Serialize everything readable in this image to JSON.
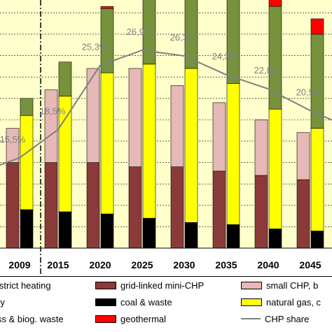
{
  "chart_data": {
    "type": "bar",
    "categories": [
      "2009",
      "2015",
      "2020",
      "2025",
      "2030",
      "2035",
      "2040",
      "2045"
    ],
    "stack_order": [
      "coal & waste",
      "grid-linked mini-CHP",
      "natural gas, c",
      "small CHP, b",
      "geothermal"
    ],
    "series": [
      {
        "name": "coal & waste",
        "color": "#000000",
        "left": [
          0,
          0,
          0,
          0,
          0,
          0,
          0,
          0
        ],
        "right": [
          0.9,
          0.85,
          0.8,
          0.7,
          0.6,
          0.55,
          0.45,
          0.4
        ]
      },
      {
        "name": "grid-linked mini-CHP",
        "color": "#8b3a3a",
        "left": [
          2.0,
          2.0,
          2.0,
          1.9,
          1.9,
          1.8,
          1.7,
          1.6
        ],
        "right": [
          0,
          0,
          0,
          0,
          0,
          0,
          0,
          0
        ]
      },
      {
        "name": "small CHP, b",
        "color": "#e6b8b8",
        "left": [
          0.8,
          1.7,
          2.2,
          2.3,
          1.9,
          1.6,
          1.3,
          1.1
        ],
        "right": [
          0,
          0,
          0,
          0,
          0,
          0,
          0,
          0
        ]
      },
      {
        "name": "natural gas, c",
        "color": "#ffff00",
        "left": [
          0,
          0,
          0,
          0,
          0,
          0,
          0,
          0
        ],
        "right": [
          2.2,
          2.7,
          3.3,
          3.6,
          3.6,
          3.3,
          2.8,
          2.4
        ]
      },
      {
        "name": "geothermal",
        "color": "#ff0000",
        "left": [
          0,
          0,
          0,
          0,
          0,
          0,
          0,
          0
        ],
        "right": [
          0,
          0,
          0.05,
          0.12,
          0.17,
          0.25,
          0.32,
          0.36
        ]
      },
      {
        "name": "biomass & biog. waste",
        "color": "#76923c",
        "left": [
          0,
          0,
          0,
          0,
          0,
          0,
          0,
          0
        ],
        "right": [
          0.4,
          0.8,
          1.5,
          1.9,
          2.1,
          2.3,
          2.4,
          2.2
        ]
      }
    ],
    "chp_share": {
      "name": "CHP share",
      "x": [
        "2009",
        "2015",
        "2020",
        "2025",
        "2030",
        "2035",
        "2040",
        "2045"
      ],
      "labels": [
        "15,5%",
        "18,5%",
        "25,3%",
        "26,9%",
        "26,3%",
        "24,3%",
        "22,8%",
        "20,5%"
      ],
      "values": [
        15.5,
        18.5,
        25.3,
        26.9,
        26.3,
        24.3,
        22.8,
        20.5
      ]
    },
    "ylim": [
      0,
      5.8
    ],
    "grid": true
  },
  "legend": {
    "items": [
      {
        "label": "istrict heating",
        "color": "#ffff99",
        "kind": "box"
      },
      {
        "label": "grid-linked mini-CHP",
        "color": "#8b3a3a",
        "kind": "box"
      },
      {
        "label": "small CHP, b",
        "color": "#e6b8b8",
        "kind": "box"
      },
      {
        "label": "ry",
        "color": "",
        "kind": "none"
      },
      {
        "label": "coal & waste",
        "color": "#000000",
        "kind": "box"
      },
      {
        "label": "natural gas, c",
        "color": "#ffff00",
        "kind": "box"
      },
      {
        "label": "ss & biog. waste",
        "color": "",
        "kind": "none"
      },
      {
        "label": "geothermal",
        "color": "#ff0000",
        "kind": "box"
      },
      {
        "label": "CHP share",
        "color": "#7f7f7f",
        "kind": "line"
      }
    ]
  },
  "colors": {
    "plot_background": "#ffffcc",
    "grid": "#000000",
    "share_line": "#7f7f7f"
  }
}
